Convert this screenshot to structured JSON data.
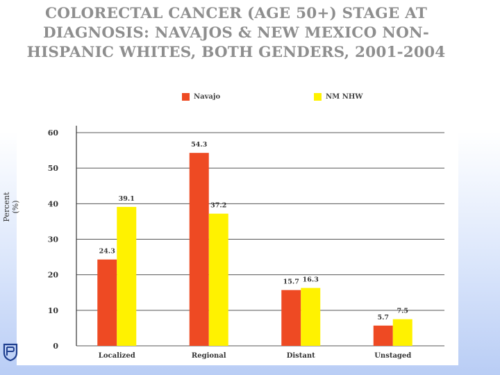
{
  "title": "COLORECTAL CANCER (AGE 50+) STAGE AT DIAGNOSIS: NAVAJOS & NEW MEXICO NON-HISPANIC WHITES, BOTH GENDERS, 2001-2004",
  "colors": {
    "navajo": "#ee4a23",
    "nmnhw": "#fff200",
    "grid": "#555555",
    "title": "#8e8e8e"
  },
  "logo_icon": "shield-logo-icon",
  "chart_data": {
    "type": "bar",
    "title": "COLORECTAL CANCER (AGE 50+) STAGE AT DIAGNOSIS: NAVAJOS & NEW MEXICO NON-HISPANIC WHITES, BOTH GENDERS, 2001-2004",
    "categories": [
      "Localized",
      "Regional",
      "Distant",
      "Unstaged"
    ],
    "series": [
      {
        "name": "Navajo",
        "values": [
          24.3,
          54.3,
          15.7,
          5.7
        ],
        "labels": [
          "24.3",
          "54.3",
          "15.7",
          "5.7"
        ]
      },
      {
        "name": "NM NHW",
        "values": [
          39.1,
          37.2,
          16.3,
          7.5
        ],
        "labels": [
          "39.1",
          "37.2",
          "16.3",
          "7.5"
        ]
      }
    ],
    "xlabel": "",
    "ylabel": "Percent (%)",
    "ylim": [
      0,
      60
    ],
    "yticks": [
      0,
      10,
      20,
      30,
      40,
      50,
      60
    ],
    "grid": true,
    "legend_position": "top"
  }
}
